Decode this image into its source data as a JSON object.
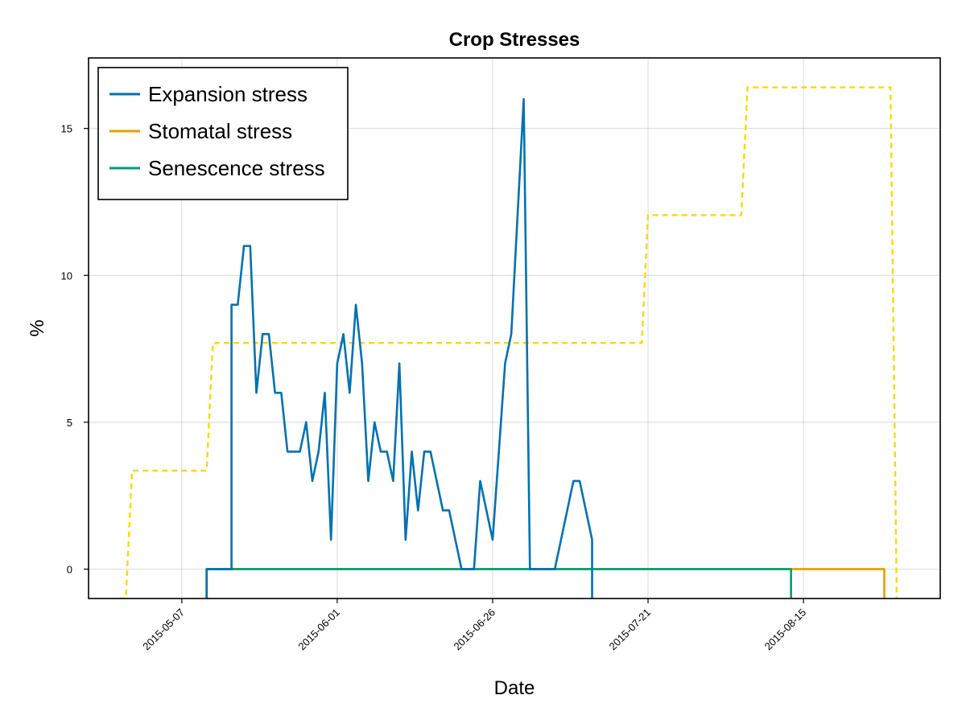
{
  "chart_data": {
    "type": "line",
    "title": "Crop Stresses",
    "xlabel": "Date",
    "ylabel": "%",
    "x_axis_type": "date",
    "xlim": [
      "2015-04-22",
      "2015-09-06"
    ],
    "ylim": [
      -1,
      17.4
    ],
    "x_ticks": [
      "2015-05-07",
      "2015-06-01",
      "2015-06-26",
      "2015-07-21",
      "2015-08-15"
    ],
    "y_ticks": [
      0,
      5,
      10,
      15
    ],
    "grid": true,
    "legend_position": "top-left",
    "colors": {
      "expansion": "#0072b2",
      "stomatal": "#e69f00",
      "senescence": "#009e73",
      "overlay": "#ffd700"
    },
    "series": [
      {
        "name": "Expansion stress",
        "color": "#0072b2",
        "dash": "solid",
        "points": [
          [
            "2015-05-11",
            -1
          ],
          [
            "2015-05-11",
            0
          ],
          [
            "2015-05-15",
            0
          ],
          [
            "2015-05-15",
            9
          ],
          [
            "2015-05-16",
            9
          ],
          [
            "2015-05-17",
            11
          ],
          [
            "2015-05-18",
            11
          ],
          [
            "2015-05-19",
            6
          ],
          [
            "2015-05-20",
            8
          ],
          [
            "2015-05-21",
            8
          ],
          [
            "2015-05-22",
            6
          ],
          [
            "2015-05-23",
            6
          ],
          [
            "2015-05-24",
            4
          ],
          [
            "2015-05-25",
            4
          ],
          [
            "2015-05-26",
            4
          ],
          [
            "2015-05-27",
            5
          ],
          [
            "2015-05-28",
            3
          ],
          [
            "2015-05-29",
            4
          ],
          [
            "2015-05-30",
            6
          ],
          [
            "2015-05-31",
            1
          ],
          [
            "2015-06-01",
            7
          ],
          [
            "2015-06-02",
            8
          ],
          [
            "2015-06-03",
            6
          ],
          [
            "2015-06-04",
            9
          ],
          [
            "2015-06-05",
            7
          ],
          [
            "2015-06-06",
            3
          ],
          [
            "2015-06-07",
            5
          ],
          [
            "2015-06-08",
            4
          ],
          [
            "2015-06-09",
            4
          ],
          [
            "2015-06-10",
            3
          ],
          [
            "2015-06-11",
            7
          ],
          [
            "2015-06-12",
            1
          ],
          [
            "2015-06-13",
            4
          ],
          [
            "2015-06-14",
            2
          ],
          [
            "2015-06-15",
            4
          ],
          [
            "2015-06-16",
            4
          ],
          [
            "2015-06-17",
            3
          ],
          [
            "2015-06-18",
            2
          ],
          [
            "2015-06-19",
            2
          ],
          [
            "2015-06-21",
            0
          ],
          [
            "2015-06-23",
            0
          ],
          [
            "2015-06-24",
            3
          ],
          [
            "2015-06-26",
            1
          ],
          [
            "2015-06-28",
            7
          ],
          [
            "2015-06-29",
            8
          ],
          [
            "2015-07-01",
            16
          ],
          [
            "2015-07-02",
            0
          ],
          [
            "2015-07-06",
            0
          ],
          [
            "2015-07-09",
            3
          ],
          [
            "2015-07-10",
            3
          ],
          [
            "2015-07-12",
            1
          ],
          [
            "2015-07-12",
            -1
          ]
        ]
      },
      {
        "name": "Stomatal stress",
        "color": "#e69f00",
        "dash": "solid",
        "points": [
          [
            "2015-05-11",
            -1
          ],
          [
            "2015-05-11",
            0
          ],
          [
            "2015-08-28",
            0
          ],
          [
            "2015-08-28",
            -1
          ]
        ]
      },
      {
        "name": "Senescence stress",
        "color": "#009e73",
        "dash": "solid",
        "points": [
          [
            "2015-05-11",
            -1
          ],
          [
            "2015-05-11",
            0
          ],
          [
            "2015-08-13",
            0
          ],
          [
            "2015-08-13",
            -1
          ]
        ]
      },
      {
        "color": "#ffd700",
        "dash": "dashed",
        "points": [
          [
            "2015-04-27",
            -1
          ],
          [
            "2015-04-28",
            -1
          ],
          [
            "2015-04-29",
            3.35
          ],
          [
            "2015-05-11",
            3.35
          ],
          [
            "2015-05-12",
            7.7
          ],
          [
            "2015-07-20",
            7.7
          ],
          [
            "2015-07-21",
            12.05
          ],
          [
            "2015-08-05",
            12.05
          ],
          [
            "2015-08-06",
            16.4
          ],
          [
            "2015-08-29",
            16.4
          ],
          [
            "2015-08-30",
            -1
          ]
        ]
      }
    ]
  }
}
